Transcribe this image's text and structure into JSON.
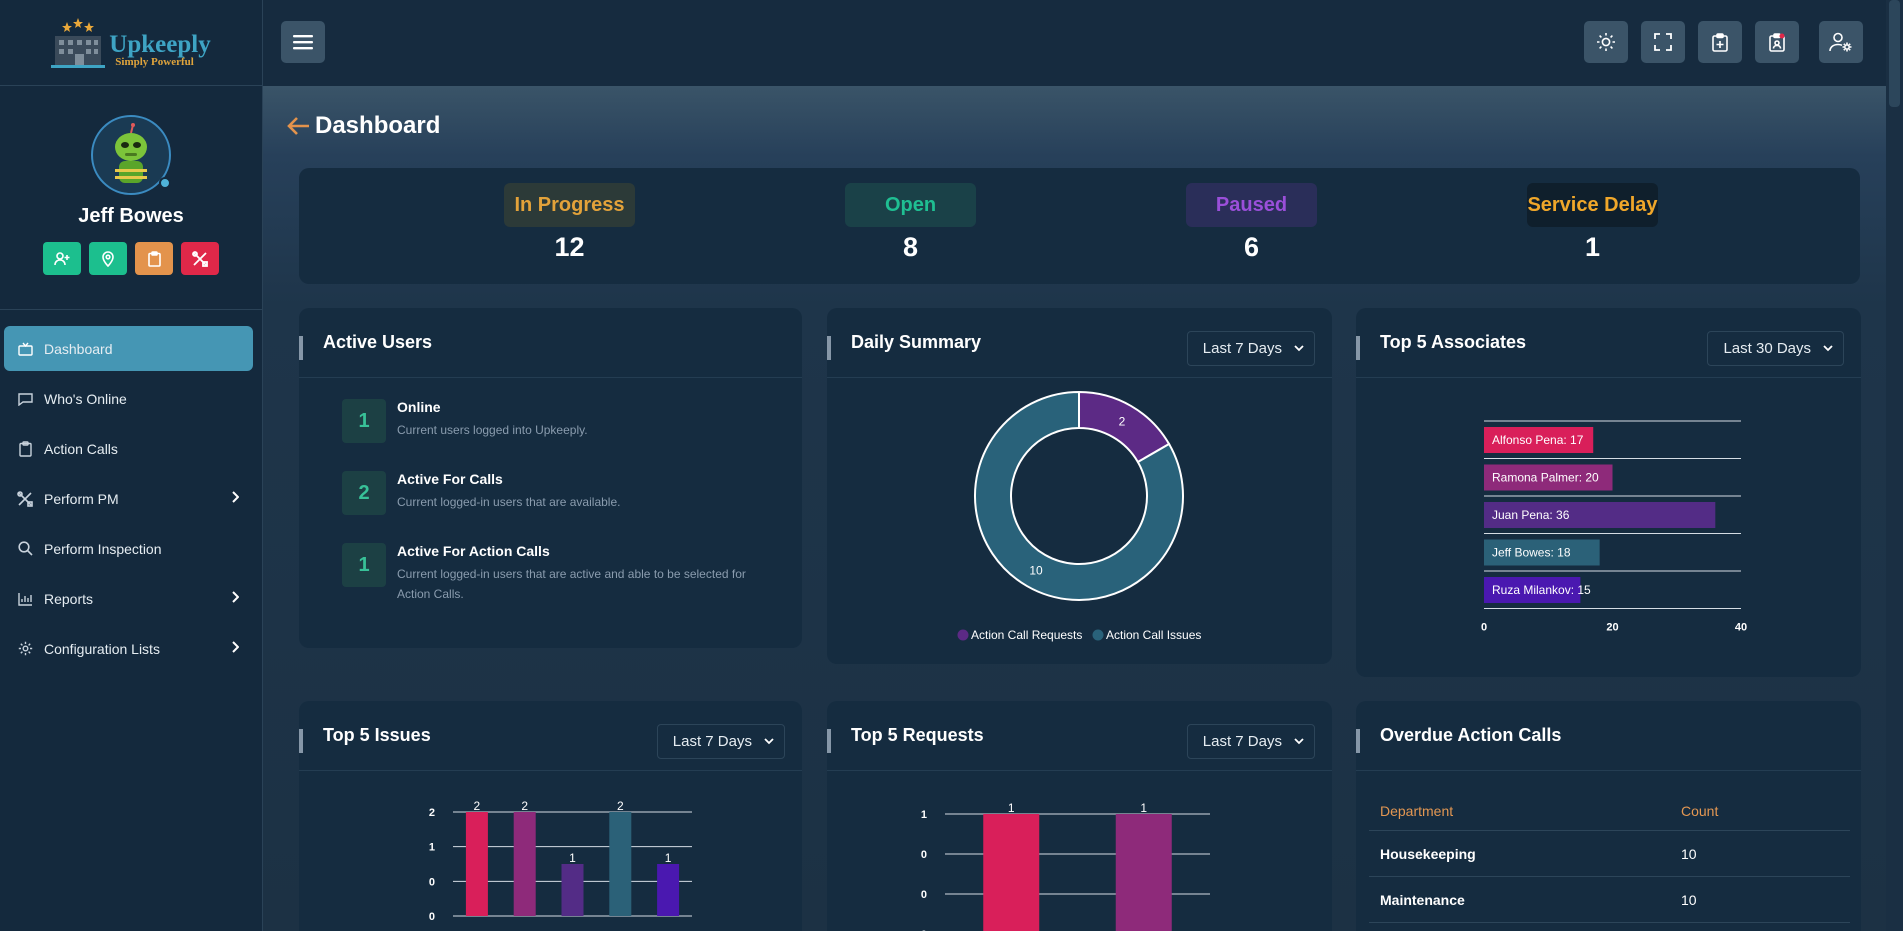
{
  "brand": {
    "name": "Upkeeply",
    "tagline": "Simply Powerful"
  },
  "user": {
    "name": "Jeff Bowes"
  },
  "quick_actions": [
    {
      "icon": "add-user-icon",
      "color": "#1cbf8e"
    },
    {
      "icon": "location-pin-icon",
      "color": "#1cbf8e"
    },
    {
      "icon": "clipboard-icon",
      "color": "#e3934c"
    },
    {
      "icon": "tools-icon",
      "color": "#e02849"
    }
  ],
  "nav": {
    "items": [
      {
        "label": "Dashboard",
        "icon": "tv-icon",
        "active": true
      },
      {
        "label": "Who's Online",
        "icon": "chat-icon"
      },
      {
        "label": "Action Calls",
        "icon": "clipboard-icon"
      },
      {
        "label": "Perform PM",
        "icon": "tools-icon",
        "has_submenu": true
      },
      {
        "label": "Perform Inspection",
        "icon": "search-icon"
      },
      {
        "label": "Reports",
        "icon": "bar-chart-icon",
        "has_submenu": true
      },
      {
        "label": "Configuration Lists",
        "icon": "gear-icon",
        "has_submenu": true
      }
    ]
  },
  "topbar": {
    "buttons": [
      "sun-icon",
      "fullscreen-icon",
      "clipboard-plus-icon",
      "clipboard-user-icon",
      "user-settings-icon"
    ]
  },
  "page": {
    "title": "Dashboard"
  },
  "status": [
    {
      "label": "In Progress",
      "value": "12",
      "color": "#e3a23a",
      "bg": "#2c3a38"
    },
    {
      "label": "Open",
      "value": "8",
      "color": "#1fbf92",
      "bg": "#1a4148"
    },
    {
      "label": "Paused",
      "value": "6",
      "color": "#9a4fd9",
      "bg": "#2a2e59"
    },
    {
      "label": "Service Delay",
      "value": "1",
      "color": "#f0a72a",
      "bg": "#0f1f2c"
    }
  ],
  "active_users": {
    "title": "Active Users",
    "rows": [
      {
        "count": "1",
        "title": "Online",
        "desc": "Current users logged into Upkeeply."
      },
      {
        "count": "2",
        "title": "Active For Calls",
        "desc": "Current logged-in users that are available."
      },
      {
        "count": "1",
        "title": "Active For Action Calls",
        "desc": "Current logged-in users that are active and able to be selected for Action Calls."
      }
    ]
  },
  "daily_summary": {
    "title": "Daily Summary",
    "range": "Last 7 Days"
  },
  "top_associates": {
    "title": "Top 5 Associates",
    "range": "Last 30 Days"
  },
  "top_issues": {
    "title": "Top 5 Issues",
    "range": "Last 7 Days"
  },
  "top_requests": {
    "title": "Top 5 Requests",
    "range": "Last 7 Days"
  },
  "overdue": {
    "title": "Overdue Action Calls",
    "columns": [
      "Department",
      "Count"
    ],
    "rows": [
      [
        "Housekeeping",
        "10"
      ],
      [
        "Maintenance",
        "10"
      ]
    ]
  },
  "chart_data": [
    {
      "type": "pie",
      "variant": "donut",
      "labels": [
        "Action Call Requests",
        "Action Call Issues"
      ],
      "values": [
        2,
        10
      ],
      "colors": [
        "#5c2a85",
        "#29627a"
      ],
      "legend": "bottom"
    },
    {
      "type": "bar",
      "orientation": "horizontal",
      "categories": [
        "Alfonso Pena",
        "Ramona Palmer",
        "Juan Pena",
        "Jeff Bowes",
        "Ruza Milankov"
      ],
      "values": [
        17,
        20,
        36,
        18,
        15
      ],
      "data_labels": [
        "Alfonso Pena: 17",
        "Ramona Palmer: 20",
        "Juan Pena: 36",
        "Jeff Bowes: 18",
        "Ruza Milankov: 15"
      ],
      "colors": [
        "#d91f5a",
        "#8e2a7a",
        "#532c86",
        "#2b6178",
        "#4a18b0"
      ],
      "ticks": [
        "0",
        "20",
        "40"
      ],
      "xlim": [
        0,
        40
      ]
    },
    {
      "type": "bar",
      "categories": [
        "",
        "",
        "",
        "",
        ""
      ],
      "values": [
        2,
        2,
        1,
        2,
        1
      ],
      "colors": [
        "#d91f5a",
        "#8e2a7a",
        "#532c86",
        "#2b6178",
        "#4a18b0"
      ],
      "yticks": [
        "0",
        "0",
        "1",
        "2"
      ],
      "ylim": [
        0,
        2
      ]
    },
    {
      "type": "bar",
      "categories": [
        "",
        ""
      ],
      "values": [
        1,
        1
      ],
      "colors": [
        "#d91f5a",
        "#8e2a7a"
      ],
      "yticks": [
        "0",
        "0",
        "0",
        "1"
      ],
      "ylim": [
        0,
        1
      ]
    }
  ]
}
